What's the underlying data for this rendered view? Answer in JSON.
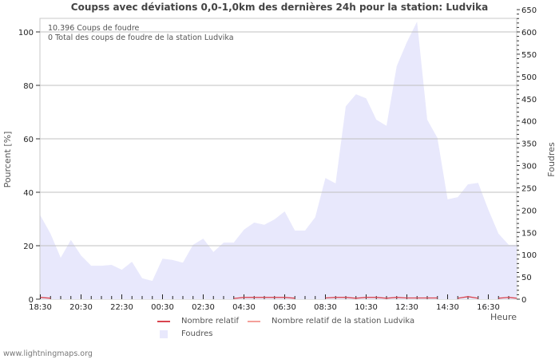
{
  "chart_data": {
    "type": "area",
    "title": "Coupss avec déviations 0,0-1,0km des dernières 24h pour la station: Ludvika",
    "xlabel": "Heure",
    "ylabel_left": "Pourcent   [%]",
    "ylabel_right": "Foudres",
    "ylim_left": [
      0,
      100
    ],
    "ylim_right": [
      0,
      650
    ],
    "yticks_left": [
      0,
      20,
      40,
      60,
      80,
      100
    ],
    "yticks_right": [
      0,
      50,
      100,
      150,
      200,
      250,
      300,
      350,
      400,
      450,
      500,
      550,
      600,
      650
    ],
    "xtick_labels": [
      "18:30",
      "20:30",
      "22:30",
      "00:30",
      "02:30",
      "04:30",
      "06:30",
      "08:30",
      "10:30",
      "12:30",
      "14:30",
      "16:30"
    ],
    "grid": true,
    "legend_position": "bottom",
    "annotations": [
      "10.396  Coups de foudre",
      "0 Total des coups de foudre de la station Ludvika"
    ],
    "x": [
      "18:30",
      "19:00",
      "19:30",
      "20:00",
      "20:30",
      "21:00",
      "21:30",
      "22:00",
      "22:30",
      "23:00",
      "23:30",
      "00:00",
      "00:30",
      "01:00",
      "01:30",
      "02:00",
      "02:30",
      "03:00",
      "03:30",
      "04:00",
      "04:30",
      "05:00",
      "05:30",
      "06:00",
      "06:30",
      "07:00",
      "07:30",
      "08:00",
      "08:30",
      "09:00",
      "09:30",
      "10:00",
      "10:30",
      "11:00",
      "11:30",
      "12:00",
      "12:30",
      "13:00",
      "13:30",
      "14:00",
      "14:30",
      "15:00",
      "15:30",
      "16:00",
      "16:30",
      "17:00",
      "17:30",
      "18:00"
    ],
    "series": [
      {
        "name": "Foudres",
        "axis": "right",
        "color": "#e8e8fc",
        "values": [
          188,
          147,
          93,
          133,
          98,
          75,
          75,
          77,
          66,
          84,
          47,
          41,
          91,
          88,
          82,
          122,
          136,
          106,
          127,
          127,
          156,
          172,
          167,
          179,
          197,
          154,
          154,
          184,
          272,
          260,
          433,
          460,
          451,
          403,
          389,
          523,
          577,
          623,
          403,
          362,
          224,
          229,
          258,
          261,
          201,
          147,
          122,
          122
        ]
      },
      {
        "name": "Nombre relatif",
        "axis": "left",
        "color": "#d9454f",
        "values": [
          0.5,
          0.2,
          null,
          null,
          null,
          null,
          null,
          null,
          null,
          null,
          null,
          null,
          null,
          null,
          null,
          null,
          null,
          null,
          null,
          0.1,
          0.5,
          0.5,
          0.5,
          0.5,
          0.5,
          0.2,
          null,
          null,
          0.3,
          0.5,
          0.5,
          0.2,
          0.5,
          0.5,
          0.2,
          0.5,
          0.3,
          0.3,
          0.3,
          0.3,
          null,
          0.2,
          0.8,
          0.2,
          null,
          0.2,
          0.5,
          0.2
        ]
      },
      {
        "name": "Nombre relatif de la station Ludvika",
        "axis": "left",
        "color": "#f4a09a",
        "values": []
      }
    ]
  },
  "legend": {
    "items": [
      {
        "label": "Nombre relatif",
        "color": "#d9454f",
        "type": "line"
      },
      {
        "label": "Nombre relatif de la station Ludvika",
        "color": "#f4a09a",
        "type": "line"
      },
      {
        "label": "Foudres",
        "color": "#e8e8fc",
        "type": "box"
      }
    ]
  },
  "footer": "www.lightningmaps.org"
}
